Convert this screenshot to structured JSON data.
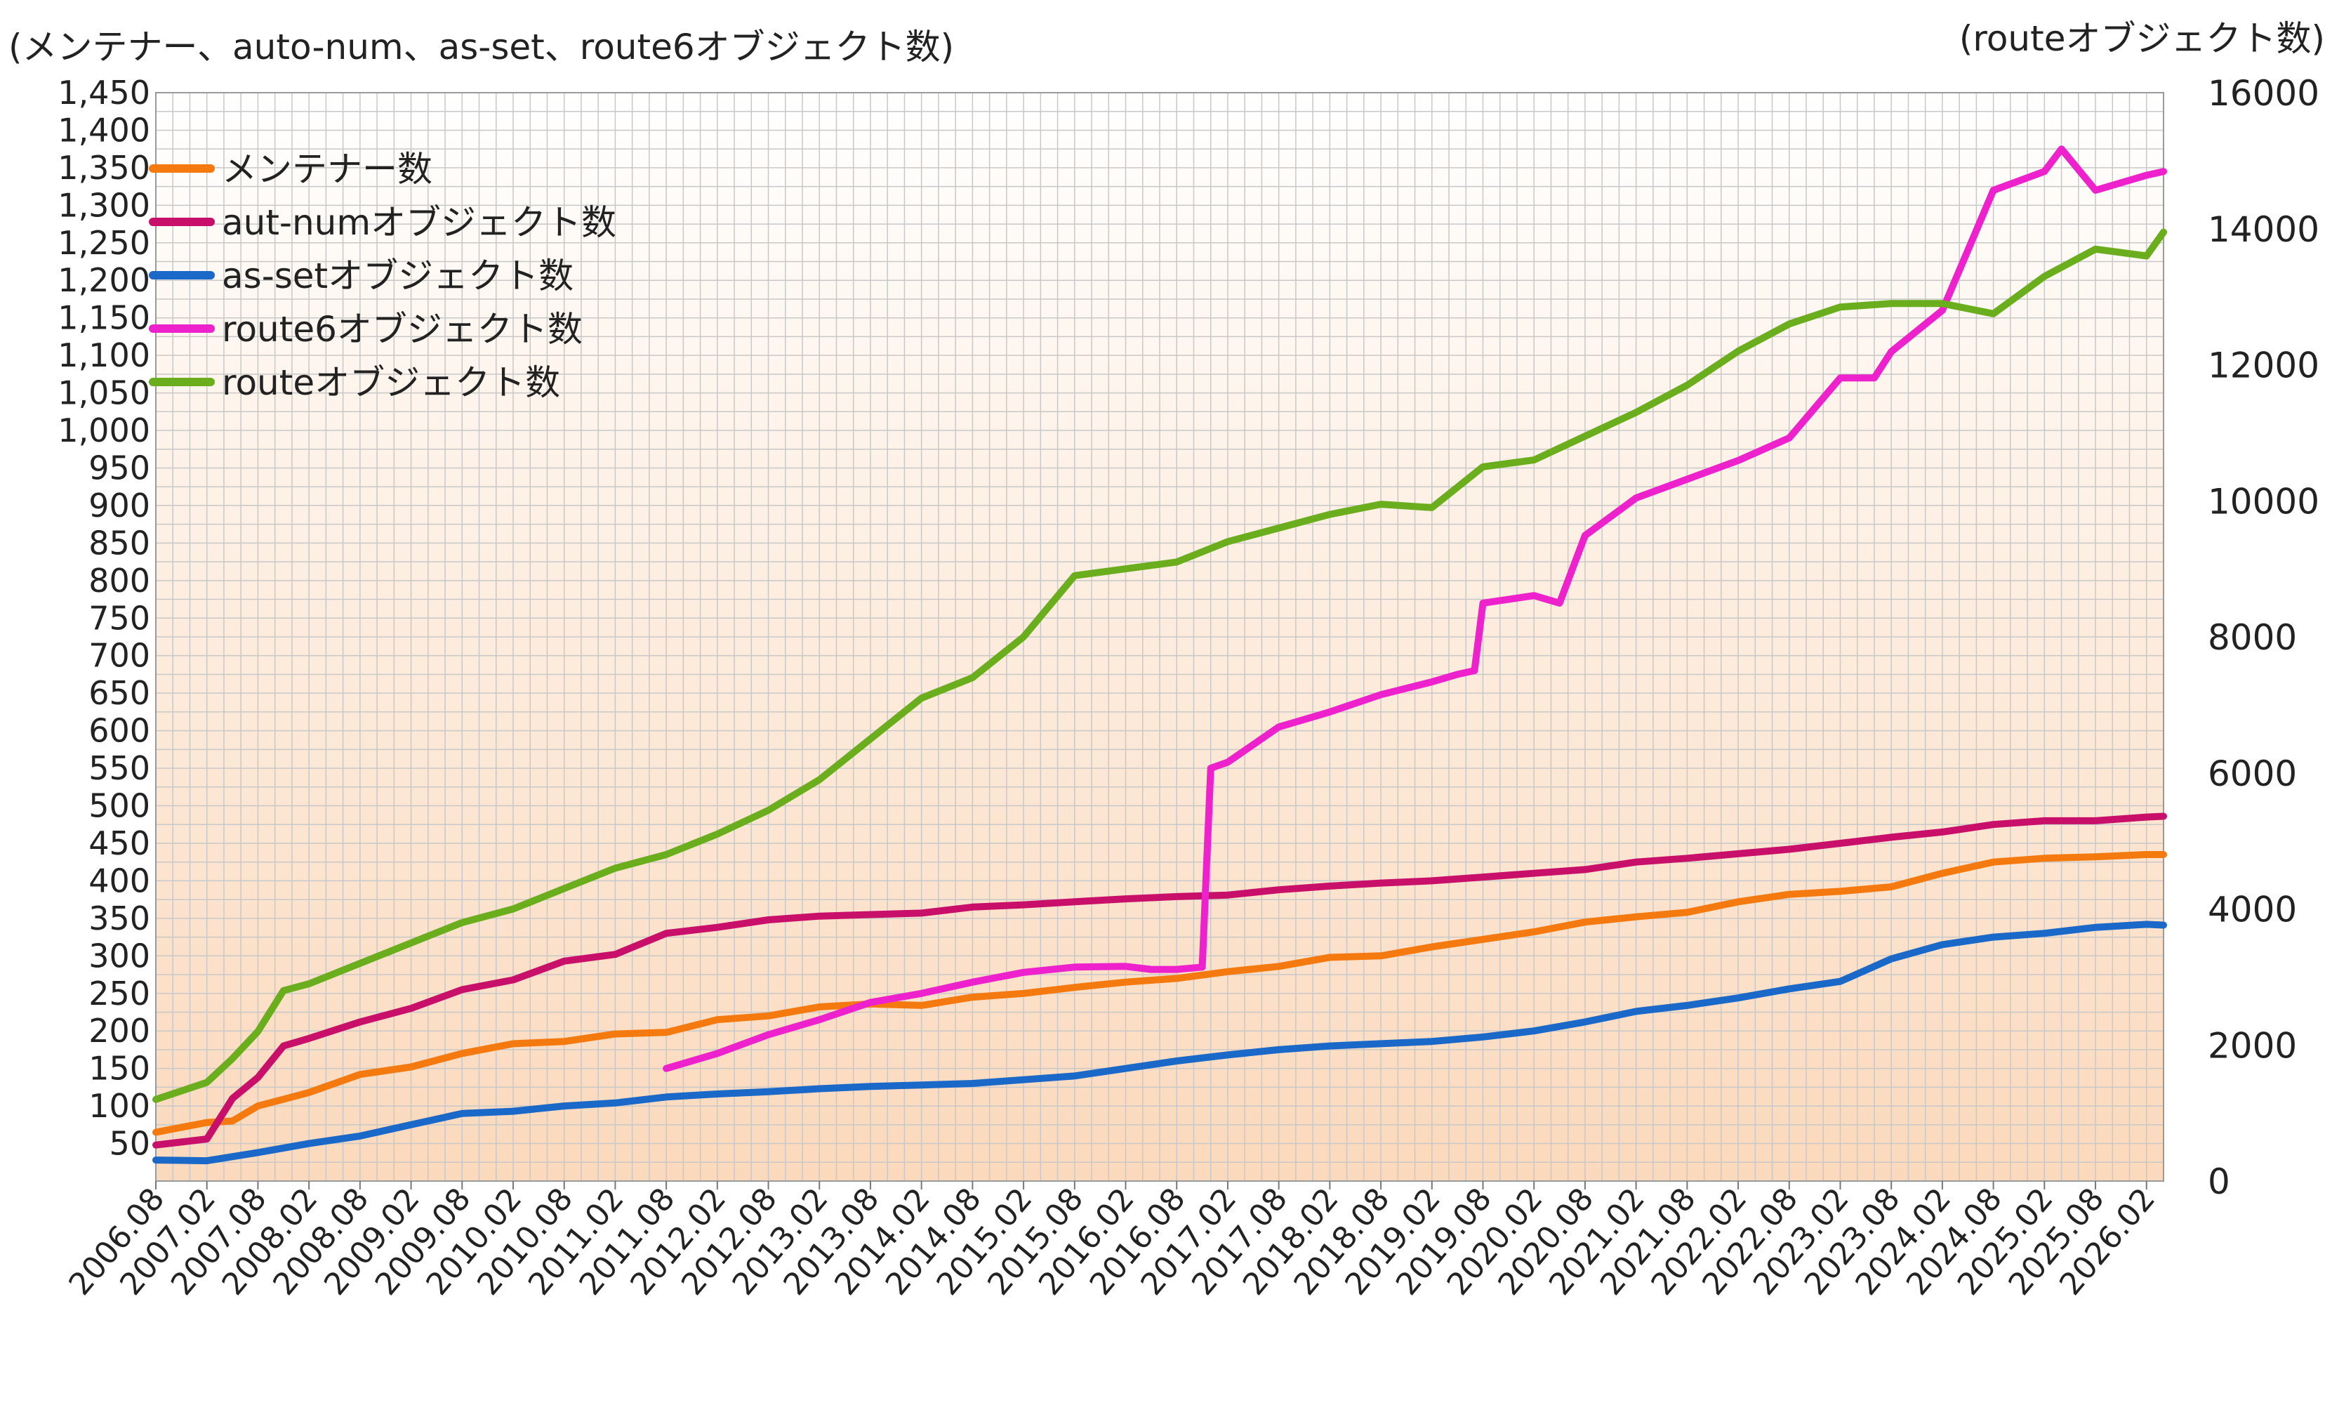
{
  "chart_data": {
    "type": "line",
    "left_axis_label": "(メンテナー、auto-num、as-set、route6オブジェクト数)",
    "right_axis_label": "(routeオブジェクト数)",
    "left_ylim": [
      0,
      1450
    ],
    "left_yticks": [
      {
        "value": 50,
        "label": "50"
      },
      {
        "value": 100,
        "label": "100"
      },
      {
        "value": 150,
        "label": "150"
      },
      {
        "value": 200,
        "label": "200"
      },
      {
        "value": 250,
        "label": "250"
      },
      {
        "value": 300,
        "label": "300"
      },
      {
        "value": 350,
        "label": "350"
      },
      {
        "value": 400,
        "label": "400"
      },
      {
        "value": 450,
        "label": "450"
      },
      {
        "value": 500,
        "label": "500"
      },
      {
        "value": 550,
        "label": "550"
      },
      {
        "value": 600,
        "label": "600"
      },
      {
        "value": 650,
        "label": "650"
      },
      {
        "value": 700,
        "label": "700"
      },
      {
        "value": 750,
        "label": "750"
      },
      {
        "value": 800,
        "label": "800"
      },
      {
        "value": 850,
        "label": "850"
      },
      {
        "value": 900,
        "label": "900"
      },
      {
        "value": 950,
        "label": "950"
      },
      {
        "value": 1000,
        "label": "1,000"
      },
      {
        "value": 1050,
        "label": "1,050"
      },
      {
        "value": 1100,
        "label": "1,100"
      },
      {
        "value": 1150,
        "label": "1,150"
      },
      {
        "value": 1200,
        "label": "1,200"
      },
      {
        "value": 1250,
        "label": "1,250"
      },
      {
        "value": 1300,
        "label": "1,300"
      },
      {
        "value": 1350,
        "label": "1,350"
      },
      {
        "value": 1400,
        "label": "1,400"
      },
      {
        "value": 1450,
        "label": "1,450"
      }
    ],
    "right_ylim": [
      0,
      16000
    ],
    "right_yticks": [
      {
        "value": 0,
        "label": "0"
      },
      {
        "value": 2000,
        "label": "2000"
      },
      {
        "value": 4000,
        "label": "4000"
      },
      {
        "value": 6000,
        "label": "6000"
      },
      {
        "value": 8000,
        "label": "8000"
      },
      {
        "value": 10000,
        "label": "10000"
      },
      {
        "value": 12000,
        "label": "12000"
      },
      {
        "value": 14000,
        "label": "14000"
      },
      {
        "value": 16000,
        "label": "16000"
      }
    ],
    "xlim": [
      "2006.08",
      "2026.04"
    ],
    "x_ticks": [
      "2006.08",
      "2007.02",
      "2007.08",
      "2008.02",
      "2008.08",
      "2009.02",
      "2009.08",
      "2010.02",
      "2010.08",
      "2011.02",
      "2011.08",
      "2012.02",
      "2012.08",
      "2013.02",
      "2013.08",
      "2014.02",
      "2014.08",
      "2015.02",
      "2015.08",
      "2016.02",
      "2016.08",
      "2017.02",
      "2017.08",
      "2018.02",
      "2018.08",
      "2019.02",
      "2019.08",
      "2020.02",
      "2020.08",
      "2021.02",
      "2021.08",
      "2022.02",
      "2022.08",
      "2023.02",
      "2023.08",
      "2024.02",
      "2024.08",
      "2025.02",
      "2025.08",
      "2026.02"
    ],
    "grid": true,
    "legend_position": "top-left",
    "series": [
      {
        "name": "メンテナー数",
        "axis": "left",
        "color": "#F47A10",
        "points": [
          [
            "2006.08",
            65
          ],
          [
            "2007.02",
            78
          ],
          [
            "2007.05",
            80
          ],
          [
            "2007.08",
            100
          ],
          [
            "2008.02",
            118
          ],
          [
            "2008.08",
            142
          ],
          [
            "2009.02",
            152
          ],
          [
            "2009.08",
            170
          ],
          [
            "2010.02",
            183
          ],
          [
            "2010.08",
            186
          ],
          [
            "2011.02",
            196
          ],
          [
            "2011.08",
            198
          ],
          [
            "2012.02",
            215
          ],
          [
            "2012.08",
            220
          ],
          [
            "2013.02",
            232
          ],
          [
            "2013.08",
            236
          ],
          [
            "2014.02",
            234
          ],
          [
            "2014.08",
            245
          ],
          [
            "2015.02",
            250
          ],
          [
            "2015.08",
            258
          ],
          [
            "2016.02",
            265
          ],
          [
            "2016.08",
            270
          ],
          [
            "2017.02",
            279
          ],
          [
            "2017.08",
            286
          ],
          [
            "2018.02",
            298
          ],
          [
            "2018.08",
            300
          ],
          [
            "2019.02",
            312
          ],
          [
            "2019.08",
            322
          ],
          [
            "2020.02",
            332
          ],
          [
            "2020.08",
            345
          ],
          [
            "2021.02",
            352
          ],
          [
            "2021.08",
            358
          ],
          [
            "2022.02",
            372
          ],
          [
            "2022.08",
            382
          ],
          [
            "2023.02",
            386
          ],
          [
            "2023.08",
            392
          ],
          [
            "2024.02",
            410
          ],
          [
            "2024.08",
            425
          ],
          [
            "2025.02",
            430
          ],
          [
            "2025.08",
            432
          ],
          [
            "2026.02",
            435
          ],
          [
            "2026.04",
            435
          ]
        ]
      },
      {
        "name": "aut-numオブジェクト数",
        "axis": "left",
        "color": "#C8106A",
        "points": [
          [
            "2006.08",
            48
          ],
          [
            "2007.02",
            56
          ],
          [
            "2007.05",
            110
          ],
          [
            "2007.08",
            138
          ],
          [
            "2007.11",
            180
          ],
          [
            "2008.02",
            190
          ],
          [
            "2008.08",
            212
          ],
          [
            "2009.02",
            230
          ],
          [
            "2009.08",
            255
          ],
          [
            "2010.02",
            268
          ],
          [
            "2010.08",
            293
          ],
          [
            "2011.02",
            302
          ],
          [
            "2011.08",
            330
          ],
          [
            "2012.02",
            338
          ],
          [
            "2012.08",
            348
          ],
          [
            "2013.02",
            353
          ],
          [
            "2013.08",
            355
          ],
          [
            "2014.02",
            357
          ],
          [
            "2014.08",
            365
          ],
          [
            "2015.02",
            368
          ],
          [
            "2015.08",
            372
          ],
          [
            "2016.02",
            376
          ],
          [
            "2016.08",
            379
          ],
          [
            "2017.02",
            381
          ],
          [
            "2017.08",
            388
          ],
          [
            "2018.02",
            393
          ],
          [
            "2018.08",
            397
          ],
          [
            "2019.02",
            400
          ],
          [
            "2019.08",
            405
          ],
          [
            "2020.02",
            410
          ],
          [
            "2020.08",
            415
          ],
          [
            "2021.02",
            425
          ],
          [
            "2021.08",
            430
          ],
          [
            "2022.02",
            436
          ],
          [
            "2022.08",
            442
          ],
          [
            "2023.02",
            450
          ],
          [
            "2023.08",
            458
          ],
          [
            "2024.02",
            465
          ],
          [
            "2024.08",
            475
          ],
          [
            "2025.02",
            480
          ],
          [
            "2025.08",
            480
          ],
          [
            "2026.02",
            485
          ],
          [
            "2026.04",
            486
          ]
        ]
      },
      {
        "name": "as-setオブジェクト数",
        "axis": "left",
        "color": "#1A68C8",
        "points": [
          [
            "2006.08",
            28
          ],
          [
            "2007.02",
            27
          ],
          [
            "2007.08",
            38
          ],
          [
            "2008.02",
            50
          ],
          [
            "2008.08",
            60
          ],
          [
            "2009.02",
            75
          ],
          [
            "2009.08",
            90
          ],
          [
            "2010.02",
            93
          ],
          [
            "2010.08",
            100
          ],
          [
            "2011.02",
            104
          ],
          [
            "2011.08",
            112
          ],
          [
            "2012.02",
            116
          ],
          [
            "2012.08",
            119
          ],
          [
            "2013.02",
            123
          ],
          [
            "2013.08",
            126
          ],
          [
            "2014.02",
            128
          ],
          [
            "2014.08",
            130
          ],
          [
            "2015.02",
            135
          ],
          [
            "2015.08",
            140
          ],
          [
            "2016.02",
            150
          ],
          [
            "2016.08",
            160
          ],
          [
            "2017.02",
            168
          ],
          [
            "2017.08",
            175
          ],
          [
            "2018.02",
            180
          ],
          [
            "2018.08",
            183
          ],
          [
            "2019.02",
            186
          ],
          [
            "2019.08",
            192
          ],
          [
            "2020.02",
            200
          ],
          [
            "2020.08",
            212
          ],
          [
            "2021.02",
            226
          ],
          [
            "2021.08",
            234
          ],
          [
            "2022.02",
            244
          ],
          [
            "2022.08",
            256
          ],
          [
            "2023.02",
            266
          ],
          [
            "2023.08",
            296
          ],
          [
            "2024.02",
            315
          ],
          [
            "2024.08",
            325
          ],
          [
            "2025.02",
            330
          ],
          [
            "2025.08",
            338
          ],
          [
            "2026.02",
            342
          ],
          [
            "2026.04",
            341
          ]
        ]
      },
      {
        "name": "route6オブジェクト数",
        "axis": "left",
        "color": "#EE22CC",
        "points": [
          [
            "2011.08",
            150
          ],
          [
            "2012.02",
            170
          ],
          [
            "2012.08",
            195
          ],
          [
            "2013.02",
            215
          ],
          [
            "2013.08",
            238
          ],
          [
            "2014.02",
            250
          ],
          [
            "2014.08",
            265
          ],
          [
            "2015.02",
            278
          ],
          [
            "2015.08",
            285
          ],
          [
            "2016.02",
            286
          ],
          [
            "2016.05",
            282
          ],
          [
            "2016.08",
            282
          ],
          [
            "2016.11",
            285
          ],
          [
            "2016.12",
            550
          ],
          [
            "2017.02",
            558
          ],
          [
            "2017.08",
            605
          ],
          [
            "2018.02",
            625
          ],
          [
            "2018.08",
            648
          ],
          [
            "2019.02",
            665
          ],
          [
            "2019.05",
            675
          ],
          [
            "2019.07",
            680
          ],
          [
            "2019.08",
            770
          ],
          [
            "2020.02",
            780
          ],
          [
            "2020.05",
            770
          ],
          [
            "2020.08",
            860
          ],
          [
            "2021.02",
            910
          ],
          [
            "2021.08",
            935
          ],
          [
            "2022.02",
            960
          ],
          [
            "2022.08",
            990
          ],
          [
            "2023.02",
            1070
          ],
          [
            "2023.06",
            1070
          ],
          [
            "2023.08",
            1105
          ],
          [
            "2024.02",
            1160
          ],
          [
            "2024.08",
            1320
          ],
          [
            "2025.02",
            1345
          ],
          [
            "2025.04",
            1375
          ],
          [
            "2025.08",
            1320
          ],
          [
            "2026.02",
            1340
          ],
          [
            "2026.04",
            1345
          ]
        ]
      },
      {
        "name": "routeオブジェクト数",
        "axis": "right",
        "color": "#6AAE1E",
        "points": [
          [
            "2006.08",
            1200
          ],
          [
            "2007.02",
            1450
          ],
          [
            "2007.05",
            1800
          ],
          [
            "2007.08",
            2200
          ],
          [
            "2007.11",
            2800
          ],
          [
            "2008.02",
            2900
          ],
          [
            "2008.08",
            3200
          ],
          [
            "2009.02",
            3500
          ],
          [
            "2009.08",
            3800
          ],
          [
            "2010.02",
            4000
          ],
          [
            "2010.08",
            4300
          ],
          [
            "2011.02",
            4600
          ],
          [
            "2011.08",
            4800
          ],
          [
            "2012.02",
            5100
          ],
          [
            "2012.08",
            5450
          ],
          [
            "2013.02",
            5900
          ],
          [
            "2013.08",
            6500
          ],
          [
            "2014.02",
            7100
          ],
          [
            "2014.08",
            7400
          ],
          [
            "2015.02",
            8000
          ],
          [
            "2015.08",
            8900
          ],
          [
            "2016.02",
            9000
          ],
          [
            "2016.08",
            9100
          ],
          [
            "2017.02",
            9400
          ],
          [
            "2017.08",
            9600
          ],
          [
            "2018.02",
            9800
          ],
          [
            "2018.08",
            9950
          ],
          [
            "2019.02",
            9900
          ],
          [
            "2019.08",
            10500
          ],
          [
            "2020.02",
            10600
          ],
          [
            "2020.08",
            10950
          ],
          [
            "2021.02",
            11300
          ],
          [
            "2021.08",
            11700
          ],
          [
            "2022.02",
            12200
          ],
          [
            "2022.08",
            12600
          ],
          [
            "2023.02",
            12850
          ],
          [
            "2023.08",
            12900
          ],
          [
            "2024.02",
            12900
          ],
          [
            "2024.08",
            12750
          ],
          [
            "2025.02",
            13300
          ],
          [
            "2025.08",
            13700
          ],
          [
            "2026.02",
            13600
          ],
          [
            "2026.04",
            13950
          ]
        ]
      }
    ]
  }
}
